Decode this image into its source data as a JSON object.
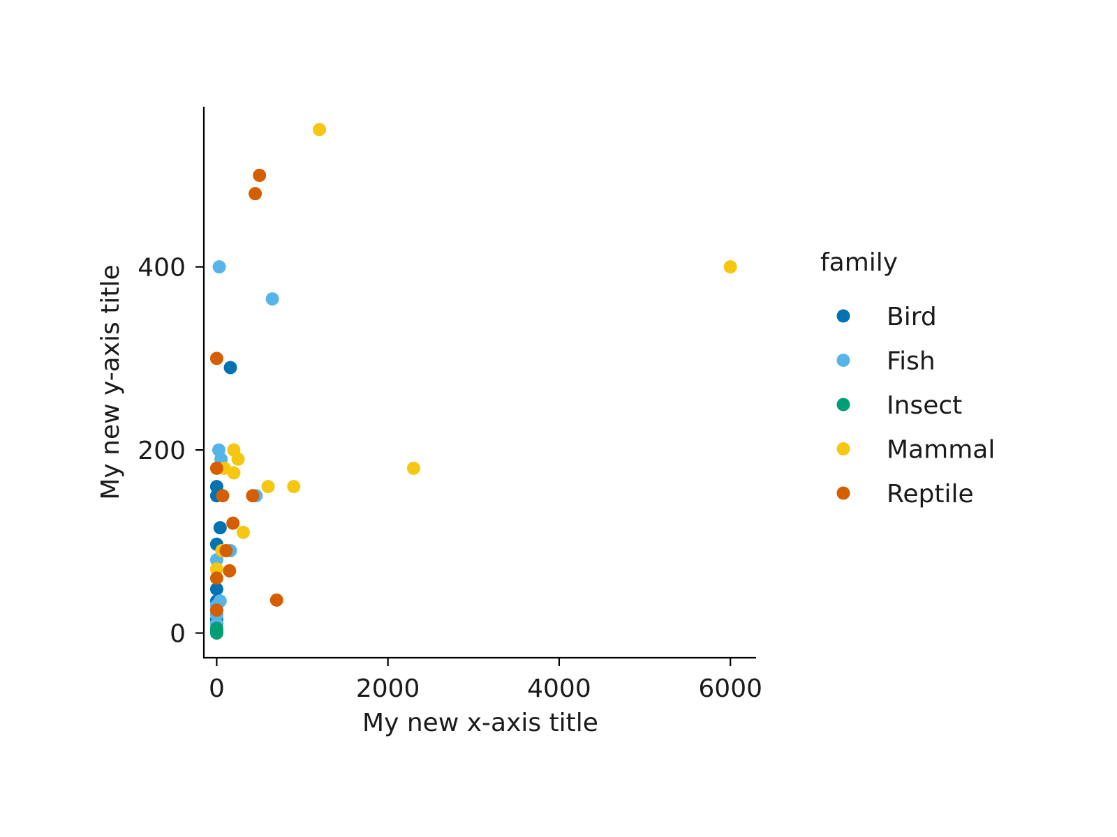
{
  "chart_data": {
    "type": "scatter",
    "xlabel": "My new x-axis title",
    "ylabel": "My new y-axis title",
    "xlim": [
      -150,
      6300
    ],
    "ylim": [
      -27,
      575
    ],
    "xticks": [
      0,
      2000,
      4000,
      6000
    ],
    "yticks": [
      0,
      200,
      400
    ],
    "grid": false,
    "legend": {
      "title": "family",
      "placement": "right"
    },
    "series": [
      {
        "name": "Bird",
        "color": "#0072B2",
        "points": [
          [
            160,
            290
          ],
          [
            0,
            160
          ],
          [
            0,
            150
          ],
          [
            40,
            115
          ],
          [
            0,
            97
          ],
          [
            0,
            48
          ],
          [
            0,
            35
          ],
          [
            0,
            25
          ],
          [
            0,
            15
          ],
          [
            0,
            10
          ]
        ]
      },
      {
        "name": "Fish",
        "color": "#56B4E9",
        "points": [
          [
            30,
            400
          ],
          [
            650,
            365
          ],
          [
            25,
            200
          ],
          [
            50,
            190
          ],
          [
            460,
            150
          ],
          [
            160,
            90
          ],
          [
            0,
            80
          ],
          [
            40,
            35
          ],
          [
            0,
            30
          ],
          [
            0,
            20
          ],
          [
            0,
            10
          ]
        ]
      },
      {
        "name": "Insect",
        "color": "#009E73",
        "points": [
          [
            0,
            5
          ],
          [
            0,
            2
          ],
          [
            0,
            0
          ]
        ]
      },
      {
        "name": "Mammal",
        "color": "#F5C710",
        "points": [
          [
            1200,
            550
          ],
          [
            6000,
            400
          ],
          [
            200,
            200
          ],
          [
            250,
            190
          ],
          [
            2300,
            180
          ],
          [
            90,
            180
          ],
          [
            200,
            175
          ],
          [
            600,
            160
          ],
          [
            900,
            160
          ],
          [
            310,
            110
          ],
          [
            60,
            90
          ],
          [
            0,
            70
          ]
        ]
      },
      {
        "name": "Reptile",
        "color": "#D55E00",
        "points": [
          [
            500,
            500
          ],
          [
            450,
            480
          ],
          [
            0,
            300
          ],
          [
            0,
            180
          ],
          [
            70,
            150
          ],
          [
            420,
            150
          ],
          [
            190,
            120
          ],
          [
            110,
            90
          ],
          [
            150,
            68
          ],
          [
            0,
            60
          ],
          [
            700,
            36
          ],
          [
            0,
            25
          ]
        ]
      }
    ]
  }
}
